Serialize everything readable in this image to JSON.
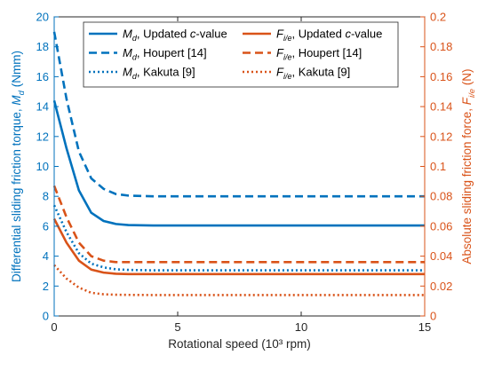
{
  "chart_data": {
    "type": "line",
    "title": "",
    "xlabel": "Rotational speed (10³ rpm)",
    "ylabel_left": {
      "prefix": "Differential sliding friction torque,  ",
      "sym": "M",
      "sub": "d",
      "suffix": " (Nmm)"
    },
    "ylabel_right": {
      "prefix": "Absolute sliding friction force,  ",
      "sym": "F",
      "sub": "i/e",
      "suffix": " (N)"
    },
    "xlim": [
      0,
      15
    ],
    "ylim_left": [
      0,
      20
    ],
    "ylim_right": [
      0,
      0.2
    ],
    "x_ticks": [
      "0",
      "5",
      "10",
      "15"
    ],
    "y_ticks_left": [
      "0",
      "2",
      "4",
      "6",
      "8",
      "10",
      "12",
      "14",
      "16",
      "18",
      "20"
    ],
    "y_ticks_right": [
      "0",
      "0.02",
      "0.04",
      "0.06",
      "0.08",
      "0.1",
      "0.12",
      "0.14",
      "0.16",
      "0.18",
      "0.2"
    ],
    "grid": false,
    "legend_position": "top",
    "colors": {
      "blue": "#0072bd",
      "orange": "#d95319",
      "axis": "#262626"
    },
    "series": [
      {
        "name": "Updated c-value",
        "sym": "M",
        "sub": "d",
        "after": ", Updated ",
        "italic": "c",
        "tail": "-value",
        "axis": "left",
        "color": "#0072bd",
        "style": "solid",
        "x": [
          0,
          0.5,
          1,
          1.5,
          2,
          2.5,
          3,
          4,
          5,
          6,
          8,
          10,
          12,
          15
        ],
        "y": [
          14.4,
          11.2,
          8.4,
          6.9,
          6.35,
          6.15,
          6.08,
          6.05,
          6.05,
          6.05,
          6.05,
          6.05,
          6.05,
          6.05
        ]
      },
      {
        "name": "Houpert [14]",
        "sym": "M",
        "sub": "d",
        "after": ", Houpert [14]",
        "italic": "",
        "tail": "",
        "axis": "left",
        "color": "#0072bd",
        "style": "dashed",
        "x": [
          0,
          0.5,
          1,
          1.5,
          2,
          2.5,
          3,
          4,
          5,
          6,
          8,
          10,
          12,
          15
        ],
        "y": [
          19.0,
          14.5,
          11.0,
          9.2,
          8.5,
          8.15,
          8.05,
          8.0,
          8.0,
          8.0,
          8.0,
          8.0,
          8.0,
          8.0
        ]
      },
      {
        "name": "Kakuta [9]",
        "sym": "M",
        "sub": "d",
        "after": ", Kakuta [9]",
        "italic": "",
        "tail": "",
        "axis": "left",
        "color": "#0072bd",
        "style": "dotted",
        "x": [
          0,
          0.5,
          1,
          1.5,
          2,
          2.5,
          3,
          4,
          5,
          6,
          8,
          10,
          12,
          15
        ],
        "y": [
          7.4,
          5.6,
          4.2,
          3.5,
          3.25,
          3.12,
          3.08,
          3.05,
          3.05,
          3.05,
          3.05,
          3.05,
          3.05,
          3.05
        ]
      },
      {
        "name": "Updated c-value",
        "sym": "F",
        "sub": "i/e",
        "after": ", Updated ",
        "italic": "c",
        "tail": "-value",
        "axis": "right",
        "color": "#d95319",
        "style": "solid",
        "x": [
          0,
          0.5,
          1,
          1.5,
          2,
          2.5,
          3,
          4,
          5,
          6,
          8,
          10,
          12,
          15
        ],
        "y": [
          0.065,
          0.049,
          0.037,
          0.031,
          0.029,
          0.0282,
          0.028,
          0.028,
          0.028,
          0.028,
          0.028,
          0.028,
          0.028,
          0.028
        ]
      },
      {
        "name": "Houpert [14]",
        "sym": "F",
        "sub": "i/e",
        "after": ", Houpert [14]",
        "italic": "",
        "tail": "",
        "axis": "right",
        "color": "#d95319",
        "style": "dashed",
        "x": [
          0,
          0.5,
          1,
          1.5,
          2,
          2.5,
          3,
          4,
          5,
          6,
          8,
          10,
          12,
          15
        ],
        "y": [
          0.087,
          0.066,
          0.049,
          0.04,
          0.037,
          0.036,
          0.036,
          0.036,
          0.036,
          0.036,
          0.036,
          0.036,
          0.036,
          0.036
        ]
      },
      {
        "name": "Kakuta [9]",
        "sym": "F",
        "sub": "i/e",
        "after": ", Kakuta [9]",
        "italic": "",
        "tail": "",
        "axis": "right",
        "color": "#d95319",
        "style": "dotted",
        "x": [
          0,
          0.5,
          1,
          1.5,
          2,
          2.5,
          3,
          4,
          5,
          6,
          8,
          10,
          12,
          15
        ],
        "y": [
          0.034,
          0.025,
          0.019,
          0.0155,
          0.0145,
          0.0142,
          0.0141,
          0.014,
          0.014,
          0.014,
          0.014,
          0.014,
          0.014,
          0.014
        ]
      }
    ]
  }
}
